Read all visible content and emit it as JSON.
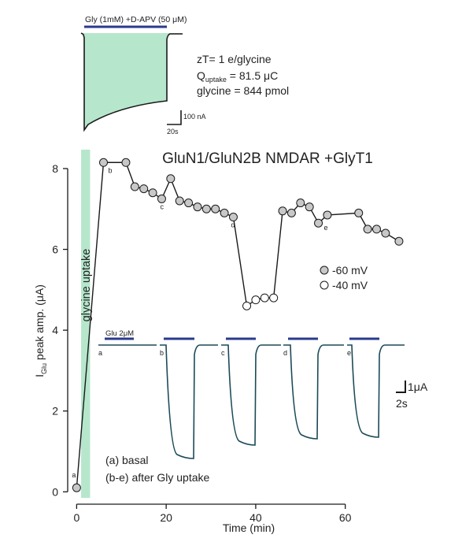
{
  "inset": {
    "bar_label": "Gly (1mM) +D-APV (50 μM)",
    "zt": "zT= 1 e/glycine",
    "q_main": "Q",
    "q_sub": "uptake",
    "q_rest": " = 81.5 μC",
    "glycine": "glycine = 844 pmol",
    "scale_y": "100 nA",
    "scale_x": "20s",
    "fill_color": "#b6e7cc"
  },
  "panel_title": "GluN1/GluN2B NMDAR +GlyT1",
  "uptake_label": "glycine uptake",
  "traces": {
    "glu_label": "Glu 2μM",
    "letters": [
      "a",
      "b",
      "c",
      "d",
      "e"
    ],
    "scale_y": "1μA",
    "scale_x": "2s",
    "trace_color": "#1a4a57",
    "bar_color": "#2a3a8c"
  },
  "annotations": {
    "basal": "(a) basal",
    "after": "(b-e) after Gly uptake"
  },
  "chart_data": {
    "type": "scatter",
    "title": "GluN1/GluN2B NMDAR +GlyT1",
    "ylabel_main": "I",
    "ylabel_sub": "Glu",
    "ylabel_rest": " peak amp. (μA)",
    "xlabel": "Time (min)",
    "xlim": [
      -2,
      75
    ],
    "ylim": [
      -0.15,
      8.35
    ],
    "xticks": [
      0,
      20,
      40,
      60
    ],
    "yticks": [
      0,
      2,
      4,
      6,
      8
    ],
    "uptake_window": [
      1,
      3
    ],
    "legend": [
      {
        "label": "-60 mV",
        "fill": "#c8c8c8"
      },
      {
        "label": "-40 mV",
        "fill": "#ffffff"
      }
    ],
    "points": [
      {
        "x": 0,
        "y": 0.1,
        "v": "-60",
        "label": "a"
      },
      {
        "x": 6,
        "y": 8.15,
        "v": "-60",
        "label": "b"
      },
      {
        "x": 11,
        "y": 8.15,
        "v": "-60"
      },
      {
        "x": 13,
        "y": 7.55,
        "v": "-60"
      },
      {
        "x": 15,
        "y": 7.5,
        "v": "-60"
      },
      {
        "x": 17,
        "y": 7.4,
        "v": "-60"
      },
      {
        "x": 19,
        "y": 7.25,
        "v": "-60",
        "label": "c"
      },
      {
        "x": 21,
        "y": 7.75,
        "v": "-60"
      },
      {
        "x": 23,
        "y": 7.2,
        "v": "-60"
      },
      {
        "x": 25,
        "y": 7.15,
        "v": "-60"
      },
      {
        "x": 27,
        "y": 7.05,
        "v": "-60"
      },
      {
        "x": 29,
        "y": 7.0,
        "v": "-60"
      },
      {
        "x": 31,
        "y": 7.0,
        "v": "-60"
      },
      {
        "x": 33,
        "y": 6.9,
        "v": "-60"
      },
      {
        "x": 35,
        "y": 6.8,
        "v": "-60",
        "label": "d"
      },
      {
        "x": 38,
        "y": 4.6,
        "v": "-40"
      },
      {
        "x": 40,
        "y": 4.75,
        "v": "-40"
      },
      {
        "x": 42,
        "y": 4.8,
        "v": "-40"
      },
      {
        "x": 44,
        "y": 4.8,
        "v": "-40"
      },
      {
        "x": 46,
        "y": 6.95,
        "v": "-60"
      },
      {
        "x": 48,
        "y": 6.9,
        "v": "-60"
      },
      {
        "x": 50,
        "y": 7.15,
        "v": "-60"
      },
      {
        "x": 52,
        "y": 7.05,
        "v": "-60"
      },
      {
        "x": 54,
        "y": 6.65,
        "v": "-60",
        "label": "e"
      },
      {
        "x": 56,
        "y": 6.85,
        "v": "-60"
      },
      {
        "x": 63,
        "y": 6.9,
        "v": "-60"
      },
      {
        "x": 65,
        "y": 6.5,
        "v": "-60"
      },
      {
        "x": 67,
        "y": 6.5,
        "v": "-60"
      },
      {
        "x": 69,
        "y": 6.4,
        "v": "-60"
      },
      {
        "x": 72,
        "y": 6.2,
        "v": "-60"
      }
    ]
  }
}
